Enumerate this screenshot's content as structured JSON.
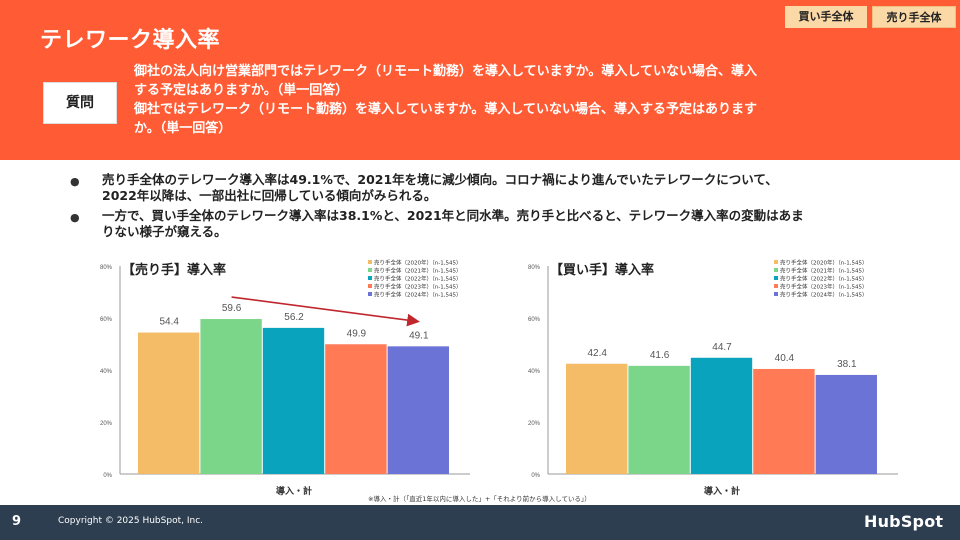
{
  "slide": {
    "title": "テレワーク導入率",
    "page_number": "9",
    "copyright": "Copyright © 2025 HubSpot, Inc.",
    "logo": "HubSpot"
  },
  "tags": {
    "buyer": "買い手全体",
    "seller": "売り手全体"
  },
  "question": {
    "label": "質問",
    "line1": "御社の法人向け営業部門ではテレワーク（リモート勤務）を導入していますか。導入していない場合、導入",
    "line2": "する予定はありますか。（単一回答）",
    "line3": "御社ではテレワーク（リモート勤務）を導入していますか。導入していない場合、導入する予定はあります",
    "line4": "か。（単一回答）"
  },
  "bullets": [
    {
      "line1": "売り手全体のテレワーク導入率は49.1%で、2021年を境に減少傾向。コロナ禍により進んでいたテレワークについて、",
      "line2": "2022年以降は、一部出社に回帰している傾向がみられる。"
    },
    {
      "line1": "一方で、買い手全体のテレワーク導入率は38.1%と、2021年と同水準。売り手と比べると、テレワーク導入率の変動はあま",
      "line2": "りない様子が窺える。"
    }
  ],
  "footnote": "※導入・計（「直近1年以内に導入した」+「それより前から導入している」）",
  "chart_data": [
    {
      "type": "bar",
      "title": "【売り手】導入率",
      "xlabel": "導入・計",
      "ylabel": "",
      "ylim": [
        0,
        80
      ],
      "yticks": [
        "0%",
        "20%",
        "40%",
        "60%",
        "80%"
      ],
      "grid": false,
      "legend_position": "top-right",
      "trend_arrow": true,
      "series": [
        {
          "name": "売り手全体（2020年）（n-1,545）",
          "value": 54.4,
          "label": "54.4",
          "color": "#f5bc68"
        },
        {
          "name": "売り手全体（2021年）（n-1,545）",
          "value": 59.6,
          "label": "59.6",
          "color": "#7cd68a"
        },
        {
          "name": "売り手全体（2022年）（n-1,545）",
          "value": 56.2,
          "label": "56.2",
          "color": "#0aa3bd"
        },
        {
          "name": "売り手全体（2023年）（n-1,545）",
          "value": 49.9,
          "label": "49.9",
          "color": "#ff7a55"
        },
        {
          "name": "売り手全体（2024年）（n-1,545）",
          "value": 49.1,
          "label": "49.1",
          "color": "#6b73d6"
        }
      ]
    },
    {
      "type": "bar",
      "title": "【買い手】導入率",
      "xlabel": "導入・計",
      "ylabel": "",
      "ylim": [
        0,
        80
      ],
      "yticks": [
        "0%",
        "20%",
        "40%",
        "60%",
        "80%"
      ],
      "grid": false,
      "legend_position": "top-right",
      "trend_arrow": false,
      "series": [
        {
          "name": "売り手全体（2020年）（n-1,545）",
          "value": 42.4,
          "label": "42.4",
          "color": "#f5bc68"
        },
        {
          "name": "売り手全体（2021年）（n-1,545）",
          "value": 41.6,
          "label": "41.6",
          "color": "#7cd68a"
        },
        {
          "name": "売り手全体（2022年）（n-1,545）",
          "value": 44.7,
          "label": "44.7",
          "color": "#0aa3bd"
        },
        {
          "name": "売り手全体（2023年）（n-1,545）",
          "value": 40.4,
          "label": "40.4",
          "color": "#ff7a55"
        },
        {
          "name": "売り手全体（2024年）（n-1,545）",
          "value": 38.1,
          "label": "38.1",
          "color": "#6b73d6"
        }
      ]
    }
  ]
}
